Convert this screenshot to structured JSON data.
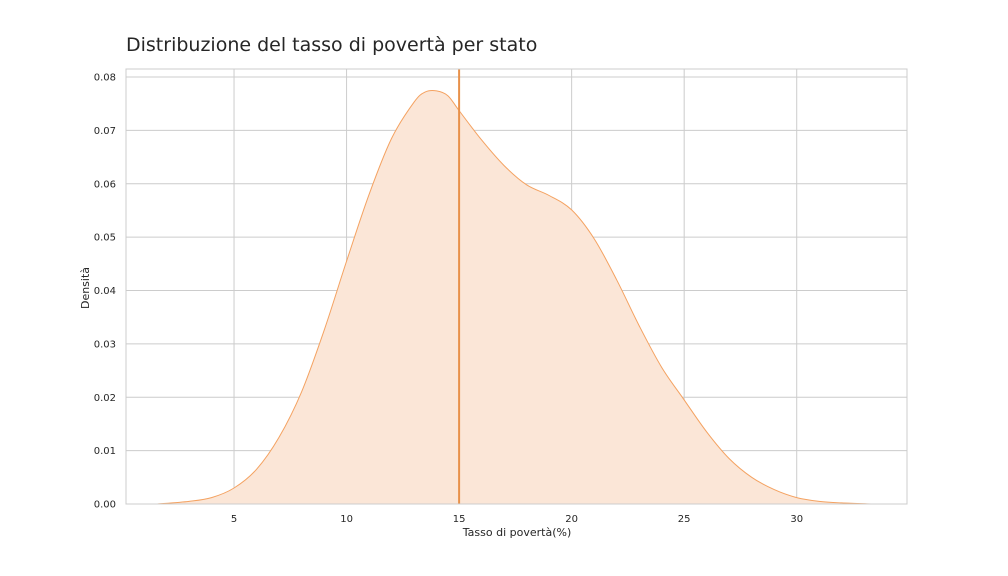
{
  "chart_data": {
    "type": "area",
    "title": "Distribuzione del tasso di povertà per stato",
    "xlabel": "Tasso di povertà(%)",
    "ylabel": "Densità",
    "xlim": [
      0.2,
      34.9
    ],
    "ylim": [
      0,
      0.0815
    ],
    "xticks": [
      5,
      10,
      15,
      20,
      25,
      30
    ],
    "yticks": [
      0.0,
      0.01,
      0.02,
      0.03,
      0.04,
      0.05,
      0.06,
      0.07,
      0.08
    ],
    "ytick_labels": [
      "0.00",
      "0.01",
      "0.02",
      "0.03",
      "0.04",
      "0.05",
      "0.06",
      "0.07",
      "0.08"
    ],
    "grid": true,
    "series": [
      {
        "kind": "kde",
        "color": "#f4a261",
        "fill_color": "#fbe6d7",
        "x": [
          1.6,
          3,
          4,
          5,
          6,
          7,
          8,
          9,
          10,
          11,
          12,
          13,
          13.5,
          14,
          14.5,
          15,
          16,
          17,
          18,
          19,
          20,
          21,
          22,
          23,
          24,
          25,
          26,
          27,
          28,
          29,
          30,
          31,
          32,
          33.3
        ],
        "y": [
          0.0,
          0.0005,
          0.0012,
          0.003,
          0.0065,
          0.0125,
          0.021,
          0.0325,
          0.0455,
          0.058,
          0.0685,
          0.0753,
          0.0772,
          0.0774,
          0.0765,
          0.0737,
          0.0682,
          0.0634,
          0.0598,
          0.0578,
          0.0551,
          0.0497,
          0.042,
          0.0334,
          0.0256,
          0.0195,
          0.0135,
          0.0085,
          0.005,
          0.0027,
          0.0012,
          0.0005,
          0.0002,
          0.0
        ]
      }
    ],
    "vline": {
      "x": 15.0,
      "color": "#e8914a"
    }
  }
}
